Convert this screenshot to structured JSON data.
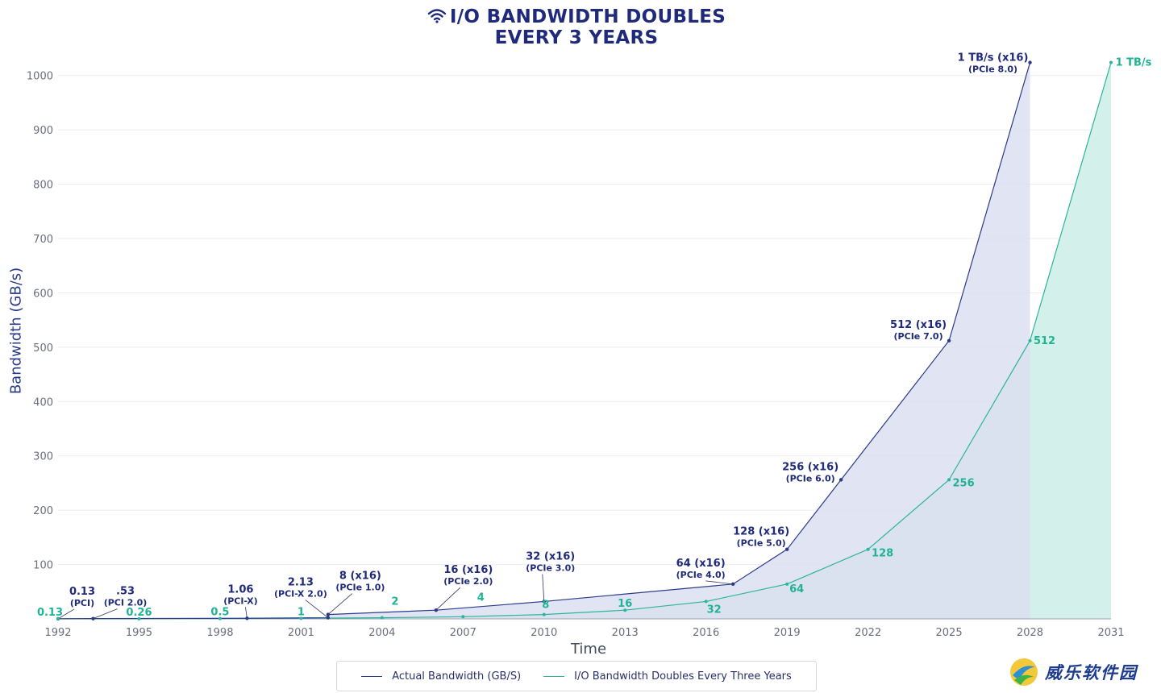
{
  "chart_data": {
    "type": "area",
    "title": [
      "I/O BANDWIDTH DOUBLES",
      "EVERY 3 YEARS"
    ],
    "xlabel": "Time",
    "ylabel": "Bandwidth (GB/s)",
    "xlim": [
      1992,
      2031
    ],
    "ylim": [
      0,
      1050
    ],
    "x_ticks": [
      "1992",
      "1995",
      "1998",
      "2001",
      "2004",
      "2007",
      "2010",
      "2013",
      "2016",
      "2019",
      "2022",
      "2025",
      "2028",
      "2031"
    ],
    "y_ticks": [
      "100",
      "200",
      "300",
      "400",
      "500",
      "600",
      "700",
      "800",
      "900",
      "1000"
    ],
    "grid": true,
    "legend_placement": "bottom-center",
    "series": [
      {
        "name": "Actual Bandwidth (GB/S)",
        "color": "#2b3a8c",
        "fill": "#dcdff0",
        "points": [
          {
            "x": 1992,
            "y": 0.13,
            "label": "0.13",
            "sub": "(PCI)"
          },
          {
            "x": 1993.3,
            "y": 0.53,
            "label": ".53",
            "sub": "(PCI 2.0)"
          },
          {
            "x": 1999,
            "y": 1.06,
            "label": "1.06",
            "sub": "(PCI-X)"
          },
          {
            "x": 2002,
            "y": 2.13,
            "label": "2.13",
            "sub": "(PCI-X 2.0)"
          },
          {
            "x": 2002,
            "y": 8,
            "label": "8 (x16)",
            "sub": "(PCIe 1.0)"
          },
          {
            "x": 2006,
            "y": 16,
            "label": "16 (x16)",
            "sub": "(PCIe 2.0)"
          },
          {
            "x": 2010,
            "y": 32,
            "label": "32 (x16)",
            "sub": "(PCIe 3.0)"
          },
          {
            "x": 2017,
            "y": 64,
            "label": "64 (x16)",
            "sub": "(PCIe 4.0)"
          },
          {
            "x": 2019,
            "y": 128,
            "label": "128 (x16)",
            "sub": "(PCIe 5.0)"
          },
          {
            "x": 2021,
            "y": 256,
            "label": "256 (x16)",
            "sub": "(PCIe 6.0)"
          },
          {
            "x": 2025,
            "y": 512,
            "label": "512 (x16)",
            "sub": "(PCIe 7.0)"
          },
          {
            "x": 2028,
            "y": 1024,
            "label": "1 TB/s (x16)",
            "sub": "(PCIe 8.0)"
          }
        ]
      },
      {
        "name": "I/O Bandwidth Doubles Every Three Years",
        "color": "#2bb59a",
        "fill": "#d3f1ea",
        "points": [
          {
            "x": 1992,
            "y": 0.13,
            "label": "0.13"
          },
          {
            "x": 1995,
            "y": 0.26,
            "label": "0.26"
          },
          {
            "x": 1998,
            "y": 0.5,
            "label": "0.5"
          },
          {
            "x": 2001,
            "y": 1,
            "label": "1"
          },
          {
            "x": 2004,
            "y": 2,
            "label": "2"
          },
          {
            "x": 2007,
            "y": 4,
            "label": "4"
          },
          {
            "x": 2010,
            "y": 8,
            "label": "8"
          },
          {
            "x": 2013,
            "y": 16,
            "label": "16"
          },
          {
            "x": 2016,
            "y": 32,
            "label": "32"
          },
          {
            "x": 2019,
            "y": 64,
            "label": "64"
          },
          {
            "x": 2022,
            "y": 128,
            "label": "128"
          },
          {
            "x": 2025,
            "y": 256,
            "label": "256"
          },
          {
            "x": 2028,
            "y": 512,
            "label": "512"
          },
          {
            "x": 2031,
            "y": 1024,
            "label": "1 TB/s"
          }
        ]
      }
    ]
  },
  "watermark": {
    "text": "威乐软件园"
  }
}
